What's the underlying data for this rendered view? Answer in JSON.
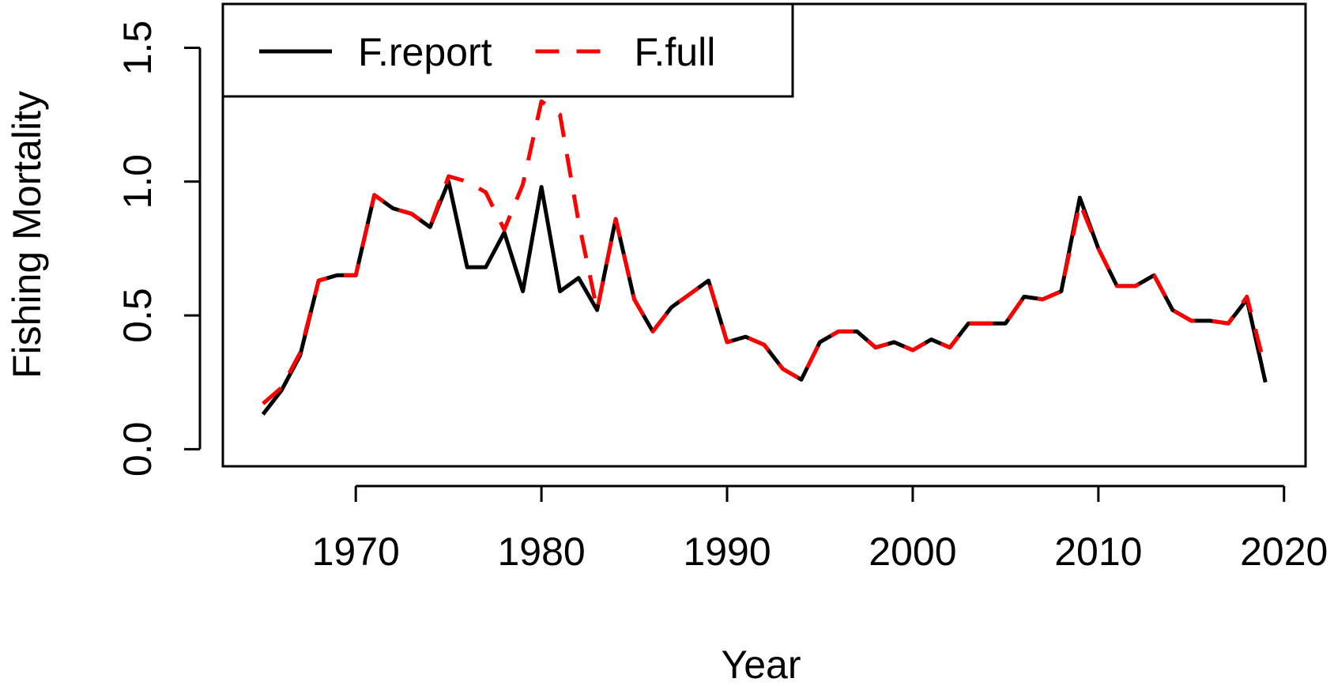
{
  "chart_data": {
    "type": "line",
    "x_label": "Year",
    "y_label": "Fishing Mortality",
    "x": [
      1965,
      1966,
      1967,
      1968,
      1969,
      1970,
      1971,
      1972,
      1973,
      1974,
      1975,
      1976,
      1977,
      1978,
      1979,
      1980,
      1981,
      1982,
      1983,
      1984,
      1985,
      1986,
      1987,
      1988,
      1989,
      1990,
      1991,
      1992,
      1993,
      1994,
      1995,
      1996,
      1997,
      1998,
      1999,
      2000,
      2001,
      2002,
      2003,
      2004,
      2005,
      2006,
      2007,
      2008,
      2009,
      2010,
      2011,
      2012,
      2013,
      2014,
      2015,
      2016,
      2017,
      2018,
      2019
    ],
    "series": [
      {
        "name": "F.report",
        "color": "#000000",
        "dashed": false,
        "values": [
          0.13,
          0.22,
          0.35,
          0.63,
          0.65,
          0.65,
          0.95,
          0.9,
          0.88,
          0.83,
          1.0,
          0.68,
          0.68,
          0.81,
          0.59,
          0.98,
          0.59,
          0.64,
          0.52,
          0.86,
          0.56,
          0.44,
          0.53,
          0.58,
          0.63,
          0.4,
          0.42,
          0.39,
          0.3,
          0.26,
          0.4,
          0.44,
          0.44,
          0.38,
          0.4,
          0.37,
          0.41,
          0.38,
          0.47,
          0.47,
          0.47,
          0.57,
          0.56,
          0.59,
          0.94,
          0.75,
          0.61,
          0.61,
          0.65,
          0.52,
          0.48,
          0.48,
          0.47,
          0.56,
          0.25
        ]
      },
      {
        "name": "F.full",
        "color": "#ff0000",
        "dashed": true,
        "values": [
          0.17,
          0.23,
          0.36,
          0.63,
          0.65,
          0.65,
          0.95,
          0.9,
          0.88,
          0.83,
          1.02,
          1.0,
          0.96,
          0.82,
          0.99,
          1.3,
          1.25,
          0.85,
          0.52,
          0.86,
          0.56,
          0.44,
          0.53,
          0.58,
          0.63,
          0.4,
          0.42,
          0.39,
          0.3,
          0.26,
          0.4,
          0.44,
          0.44,
          0.38,
          0.4,
          0.37,
          0.41,
          0.38,
          0.47,
          0.47,
          0.47,
          0.57,
          0.56,
          0.59,
          0.92,
          0.75,
          0.61,
          0.61,
          0.65,
          0.52,
          0.48,
          0.48,
          0.47,
          0.57,
          0.3
        ]
      }
    ],
    "xlim": [
      1962.84,
      2021.16
    ],
    "xticks": [
      1970,
      1980,
      1990,
      2000,
      2010,
      2020
    ],
    "ylim": [
      -0.064,
      1.664
    ],
    "yticks": [
      {
        "value": 0,
        "label": "0.0"
      },
      {
        "value": 0.5,
        "label": "0.5"
      },
      {
        "value": 1,
        "label": "1.0"
      },
      {
        "value": 1.5,
        "label": "1.5"
      }
    ],
    "legend": "top-left"
  }
}
